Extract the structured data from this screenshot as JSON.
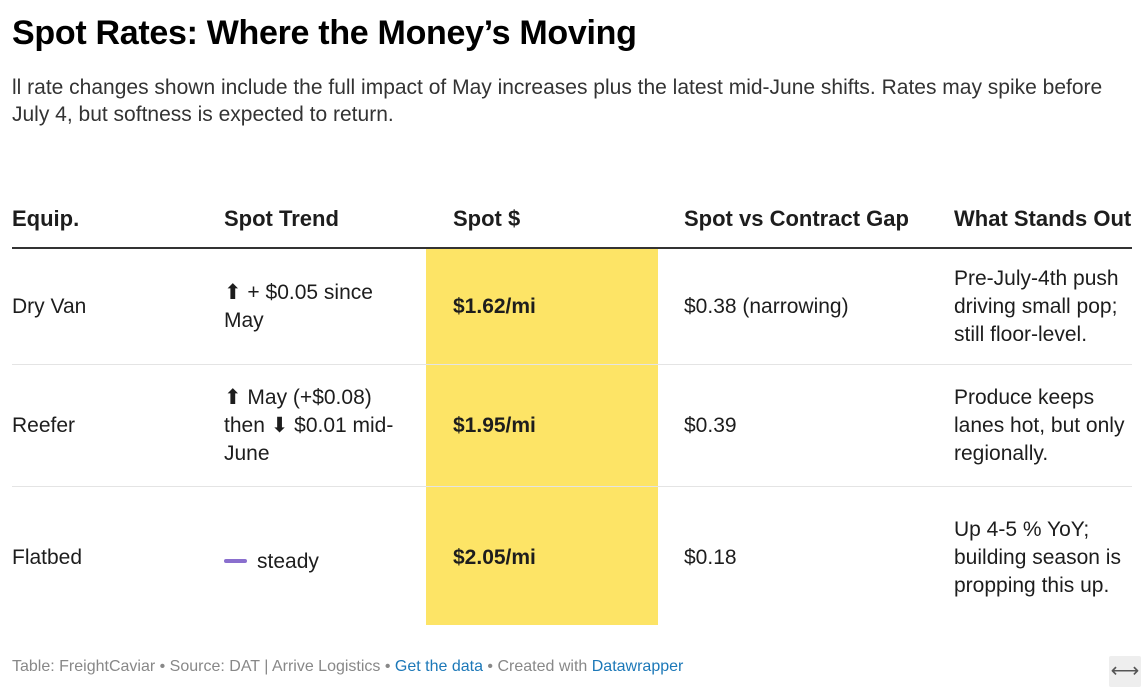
{
  "title": "Spot Rates: Where the Money’s Moving",
  "subtitle": "ll rate changes shown include the full impact of May increases plus the latest mid-June shifts. Rates may spike before July 4, but softness is expected to return.",
  "columns": {
    "equip": "Equip.",
    "trend": "Spot Trend",
    "spot": "Spot $",
    "gap": "Spot vs Contract Gap",
    "stands": "What Stands Out"
  },
  "rows": [
    {
      "equip": "Dry Van",
      "trend": "⬆ + $0.05 since May",
      "spot": "$1.62/mi",
      "gap": "$0.38 (narrowing)",
      "stands": "Pre-July-4th push driving small pop; still floor-level."
    },
    {
      "equip": "Reefer",
      "trend": "⬆ May (+$0.08) then ⬇ $0.01 mid-June",
      "spot": "$1.95/mi",
      "gap": "$0.39",
      "stands": "Produce keeps lanes hot, but only regionally."
    },
    {
      "equip": "Flatbed",
      "trend": "steady",
      "spot": "$2.05/mi",
      "gap": "$0.18",
      "stands": "Up 4-5 % YoY; building season is propping this up."
    }
  ],
  "footer": {
    "table_credit": "Table: FreightCaviar",
    "sep1": " • ",
    "source": "Source: DAT | Arrive Logistics",
    "sep2": " • ",
    "get_data": "Get the data",
    "sep3": " • ",
    "created_with": "Created with ",
    "datawrapper": "Datawrapper"
  },
  "expand_glyph": "⟷",
  "colors": {
    "highlight": "#fde466",
    "link": "#1c78b8",
    "steady_dash": "#8a6fce"
  }
}
